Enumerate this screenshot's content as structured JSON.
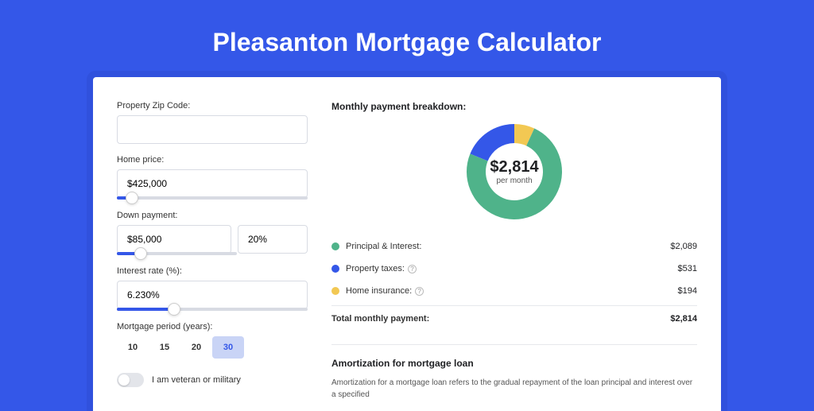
{
  "page": {
    "title": "Pleasanton Mortgage Calculator",
    "background_color": "#3457e8"
  },
  "form": {
    "zip_label": "Property Zip Code:",
    "zip_value": "",
    "home_price_label": "Home price:",
    "home_price_value": "$425,000",
    "home_price_slider_pct": 8,
    "down_payment_label": "Down payment:",
    "down_payment_value": "$85,000",
    "down_payment_pct": "20%",
    "down_payment_slider_pct": 20,
    "interest_label": "Interest rate (%):",
    "interest_value": "6.230%",
    "interest_slider_pct": 30,
    "period_label": "Mortgage period (years):",
    "period_options": [
      "10",
      "15",
      "20",
      "30"
    ],
    "period_selected": "30",
    "veteran_label": "I am veteran or military",
    "veteran_on": false
  },
  "breakdown": {
    "title": "Monthly payment breakdown:",
    "center_amount": "$2,814",
    "center_sub": "per month",
    "donut": {
      "size": 120,
      "inner_radius": 36,
      "outer_radius": 60,
      "segments": [
        {
          "label": "Principal & Interest",
          "color": "#4fb38a",
          "value": 2089,
          "display": "$2,089"
        },
        {
          "label": "Property taxes",
          "color": "#3457e8",
          "value": 531,
          "display": "$531",
          "info": true
        },
        {
          "label": "Home insurance",
          "color": "#f2c853",
          "value": 194,
          "display": "$194",
          "info": true
        }
      ]
    },
    "total_label": "Total monthly payment:",
    "total_value": "$2,814"
  },
  "amortization": {
    "title": "Amortization for mortgage loan",
    "text": "Amortization for a mortgage loan refers to the gradual repayment of the loan principal and interest over a specified"
  },
  "colors": {
    "accent": "#3457e8",
    "green": "#4fb38a",
    "yellow": "#f2c853",
    "border": "#d8dbe3"
  }
}
